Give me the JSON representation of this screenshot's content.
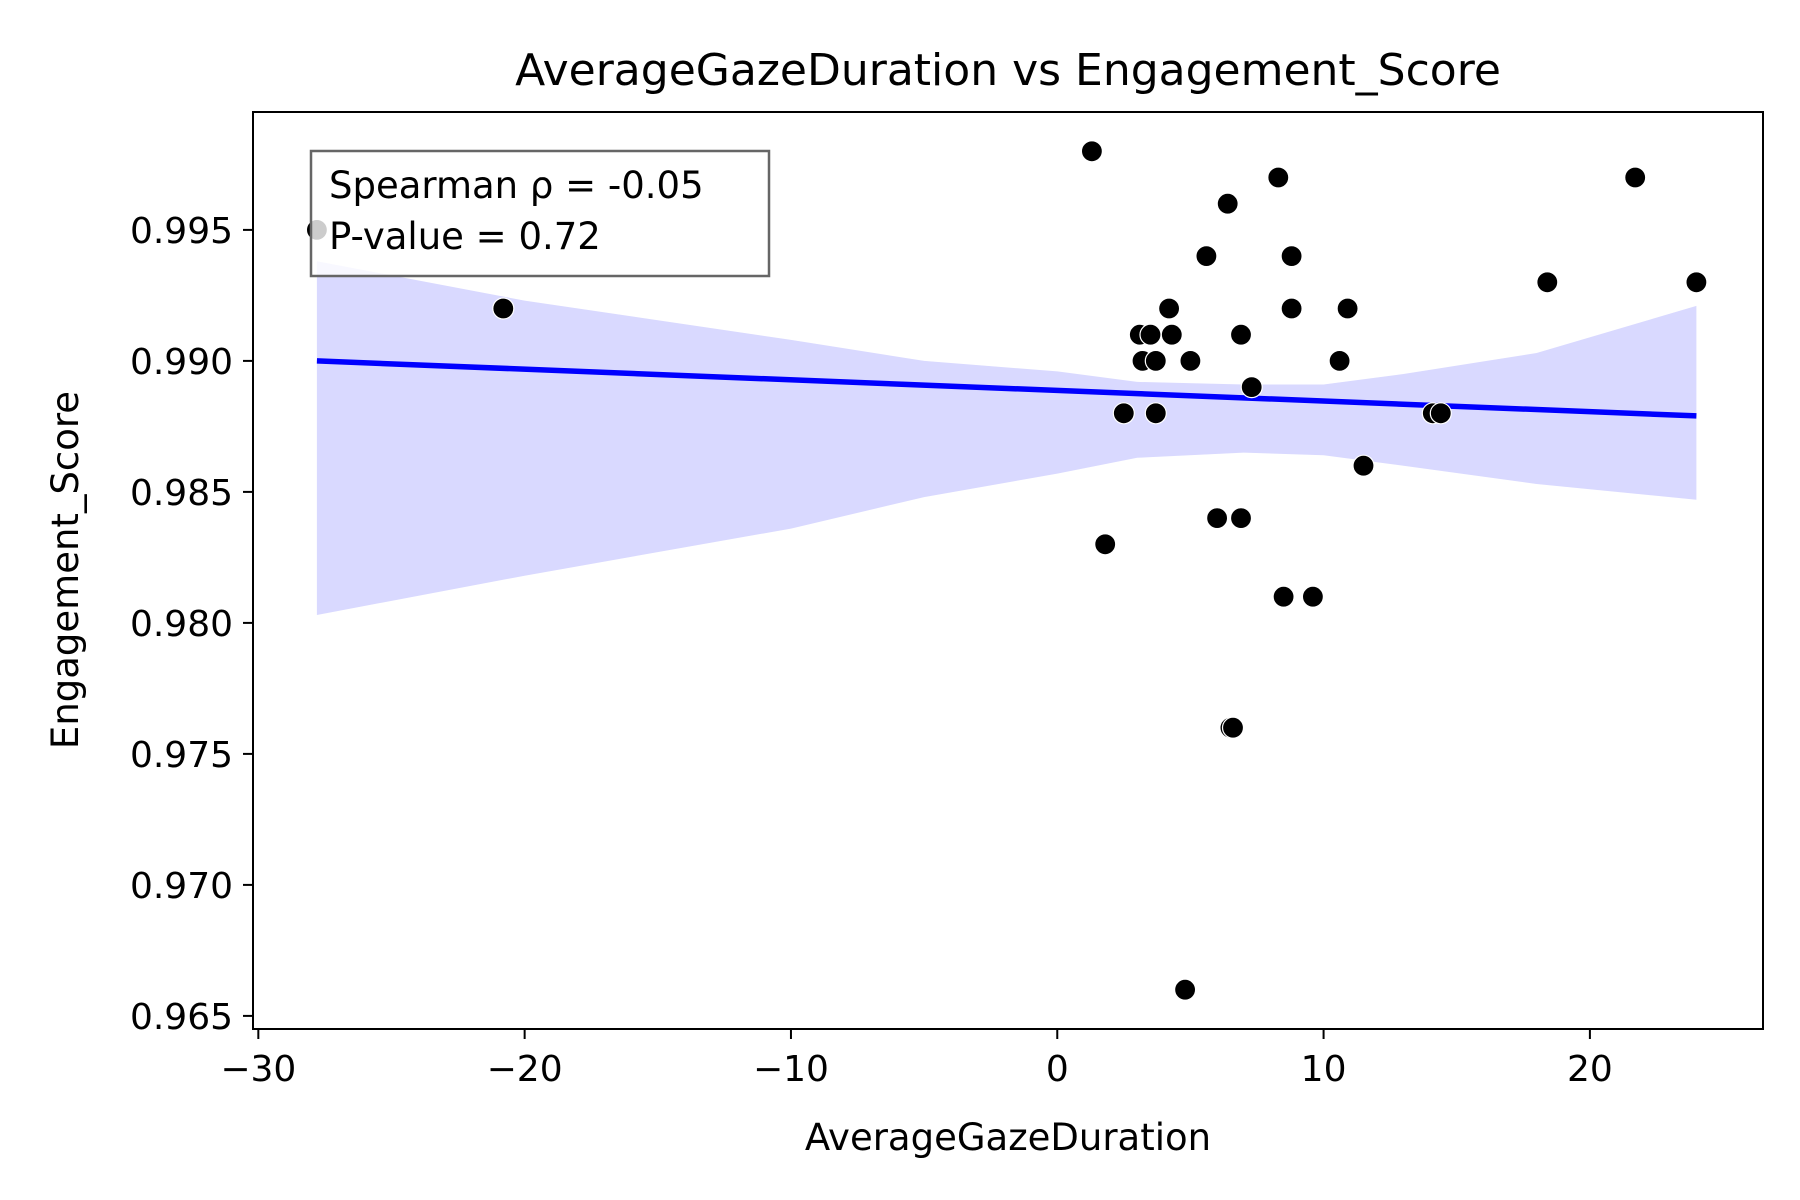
{
  "chart_data": {
    "type": "scatter",
    "title": "AverageGazeDuration vs Engagement_Score",
    "xlabel": "AverageGazeDuration",
    "ylabel": "Engagement_Score",
    "xlim": [
      -30.2,
      26.5
    ],
    "ylim": [
      0.9645,
      0.9995
    ],
    "x_ticks": [
      {
        "value": -30,
        "label": "−30"
      },
      {
        "value": -20,
        "label": "−20"
      },
      {
        "value": -10,
        "label": "−10"
      },
      {
        "value": 0,
        "label": "0"
      },
      {
        "value": 10,
        "label": "10"
      },
      {
        "value": 20,
        "label": "20"
      }
    ],
    "y_ticks": [
      {
        "value": 0.965,
        "label": "0.965"
      },
      {
        "value": 0.97,
        "label": "0.970"
      },
      {
        "value": 0.975,
        "label": "0.975"
      },
      {
        "value": 0.98,
        "label": "0.980"
      },
      {
        "value": 0.985,
        "label": "0.985"
      },
      {
        "value": 0.99,
        "label": "0.990"
      },
      {
        "value": 0.995,
        "label": "0.995"
      }
    ],
    "grid": false,
    "points": [
      {
        "x": -27.8,
        "y": 0.995
      },
      {
        "x": -20.8,
        "y": 0.992
      },
      {
        "x": 1.3,
        "y": 0.998
      },
      {
        "x": 1.8,
        "y": 0.983
      },
      {
        "x": 2.5,
        "y": 0.988
      },
      {
        "x": 3.1,
        "y": 0.991
      },
      {
        "x": 3.2,
        "y": 0.99
      },
      {
        "x": 3.5,
        "y": 0.991
      },
      {
        "x": 3.7,
        "y": 0.99
      },
      {
        "x": 3.7,
        "y": 0.988
      },
      {
        "x": 4.2,
        "y": 0.992
      },
      {
        "x": 4.3,
        "y": 0.991
      },
      {
        "x": 4.8,
        "y": 0.966
      },
      {
        "x": 5.0,
        "y": 0.99
      },
      {
        "x": 5.6,
        "y": 0.994
      },
      {
        "x": 6.0,
        "y": 0.984
      },
      {
        "x": 6.4,
        "y": 0.996
      },
      {
        "x": 6.5,
        "y": 0.976
      },
      {
        "x": 6.6,
        "y": 0.976
      },
      {
        "x": 6.9,
        "y": 0.991
      },
      {
        "x": 6.9,
        "y": 0.984
      },
      {
        "x": 7.3,
        "y": 0.989
      },
      {
        "x": 8.3,
        "y": 0.997
      },
      {
        "x": 8.5,
        "y": 0.981
      },
      {
        "x": 8.8,
        "y": 0.994
      },
      {
        "x": 8.8,
        "y": 0.992
      },
      {
        "x": 9.6,
        "y": 0.981
      },
      {
        "x": 10.6,
        "y": 0.99
      },
      {
        "x": 10.9,
        "y": 0.992
      },
      {
        "x": 11.5,
        "y": 0.986
      },
      {
        "x": 14.1,
        "y": 0.988
      },
      {
        "x": 14.4,
        "y": 0.988
      },
      {
        "x": 18.4,
        "y": 0.993
      },
      {
        "x": 21.7,
        "y": 0.997
      },
      {
        "x": 24.0,
        "y": 0.993
      }
    ],
    "regression_line": {
      "x": [
        -27.8,
        24.0
      ],
      "y": [
        0.99,
        0.9879
      ]
    },
    "confidence_band": [
      {
        "x": -27.8,
        "lower": 0.9803,
        "upper": 0.9938
      },
      {
        "x": -20.0,
        "lower": 0.9818,
        "upper": 0.9923
      },
      {
        "x": -10.0,
        "lower": 0.9836,
        "upper": 0.9908
      },
      {
        "x": -5.0,
        "lower": 0.9848,
        "upper": 0.99
      },
      {
        "x": 0.0,
        "lower": 0.9857,
        "upper": 0.9896
      },
      {
        "x": 3.0,
        "lower": 0.9863,
        "upper": 0.9892
      },
      {
        "x": 7.0,
        "lower": 0.9865,
        "upper": 0.9891
      },
      {
        "x": 10.0,
        "lower": 0.9864,
        "upper": 0.9891
      },
      {
        "x": 13.0,
        "lower": 0.986,
        "upper": 0.9895
      },
      {
        "x": 18.0,
        "lower": 0.9853,
        "upper": 0.9903
      },
      {
        "x": 24.0,
        "lower": 0.9847,
        "upper": 0.9921
      }
    ],
    "annotation": {
      "line1": "Spearman ρ = -0.05",
      "line2": "P-value = 0.72",
      "placement": "top-left"
    },
    "colors": {
      "points": "#000000",
      "regression_line": "#0000ff",
      "band": "#d9d9ff",
      "annotation_border": "#666666"
    }
  }
}
